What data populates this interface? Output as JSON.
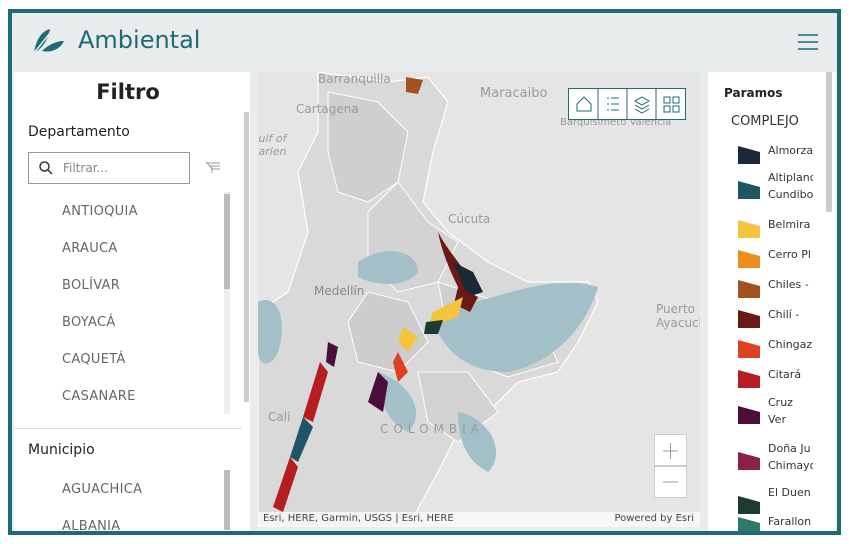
{
  "header": {
    "title": "Ambiental"
  },
  "filter": {
    "title": "Filtro",
    "department": {
      "label": "Departamento",
      "search_placeholder": "Filtrar...",
      "items": [
        "ANTIOQUIA",
        "ARAUCA",
        "BOLÍVAR",
        "BOYACÁ",
        "CAQUETÁ",
        "CASANARE"
      ]
    },
    "municipality": {
      "label": "Municipio",
      "items": [
        "AGUACHICA",
        "ALBANIA"
      ]
    }
  },
  "map": {
    "labels": [
      "Barranquilla",
      "Maracaibo",
      "Cartagena",
      "Gulf of Darien",
      "Barquisimeto Valencia",
      "Cúcuta",
      "Medellín",
      "Puerto Ayacucho",
      "Cali",
      "COLOMBIA"
    ],
    "attribution": "Esri, HERE, Garmin, USGS | Esri, HERE",
    "powered_by": "Powered by Esri"
  },
  "legend": {
    "layer": "Paramos",
    "group": "COMPLEJO",
    "items": [
      {
        "label": "Almorza",
        "color": "#1b2838"
      },
      {
        "label": "Altiplano Cundibo",
        "color": "#1f5665"
      },
      {
        "label": "Belmira",
        "color": "#f6c33d"
      },
      {
        "label": "Cerro Pl",
        "color": "#ec8e1c"
      },
      {
        "label": "Chiles -",
        "color": "#a3521f"
      },
      {
        "label": "Chilí - Ba",
        "color": "#6a1914"
      },
      {
        "label": "Chingaz",
        "color": "#dc4122"
      },
      {
        "label": "Citará",
        "color": "#b71c22"
      },
      {
        "label": "Cruz Ver Sumapa",
        "color": "#4a0e3c"
      },
      {
        "label": "Doña Ju Chimayo",
        "color": "#8c2242"
      },
      {
        "label": "El Duen",
        "color": "#1e3b30"
      },
      {
        "label": "Farallon",
        "color": "#2d7a6a"
      }
    ]
  }
}
